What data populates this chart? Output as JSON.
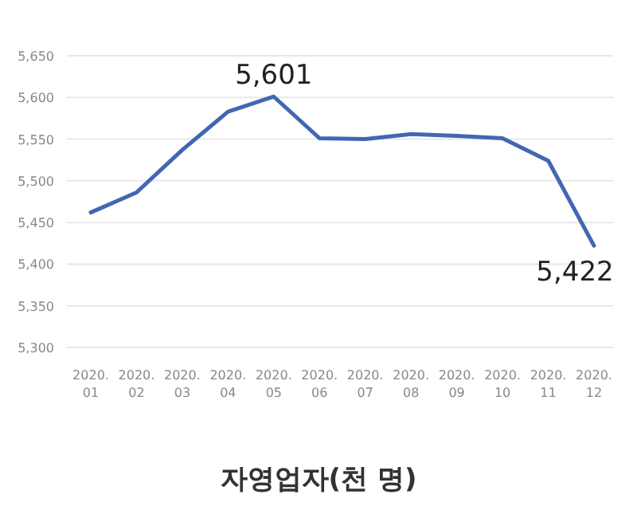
{
  "chart_data": {
    "type": "line",
    "title": "자영업자(천 명)",
    "categories": [
      "2020.\n01",
      "2020.\n02",
      "2020.\n03",
      "2020.\n04",
      "2020.\n05",
      "2020.\n06",
      "2020.\n07",
      "2020.\n08",
      "2020.\n09",
      "2020.\n10",
      "2020.\n11",
      "2020.\n12"
    ],
    "series": [
      {
        "color": "#4267b2",
        "values": [
          5462,
          5486,
          5537,
          5583,
          5601,
          5551,
          5550,
          5556,
          5554,
          5551,
          5524,
          5422
        ],
        "value_labels": [
          null,
          null,
          null,
          null,
          "5,601",
          null,
          null,
          null,
          null,
          null,
          null,
          "5,422"
        ]
      }
    ],
    "ylim": [
      5300,
      5650
    ],
    "yticks": [
      {
        "value": 5300,
        "label": "5,300"
      },
      {
        "value": 5350,
        "label": "5,350"
      },
      {
        "value": 5400,
        "label": "5,400"
      },
      {
        "value": 5450,
        "label": "5,450"
      },
      {
        "value": 5500,
        "label": "5,500"
      },
      {
        "value": 5550,
        "label": "5,550"
      },
      {
        "value": 5600,
        "label": "5,600"
      },
      {
        "value": 5650,
        "label": "5,650"
      }
    ],
    "grid": "y",
    "marker": "none",
    "line_style": "solid"
  }
}
